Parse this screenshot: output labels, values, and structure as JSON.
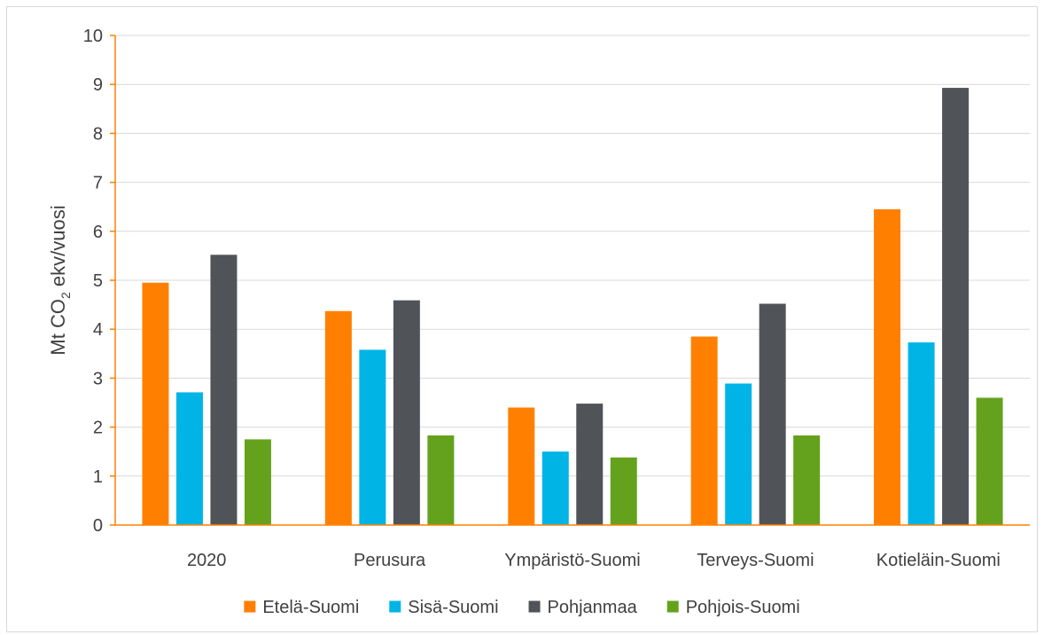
{
  "chart_data": {
    "type": "bar",
    "title": "",
    "ylabel": {
      "pre": "Mt CO",
      "sub": "2",
      "post": " ekv/vuosi"
    },
    "xlabel": "",
    "ylim": [
      0,
      10
    ],
    "yticks": [
      0,
      1,
      2,
      3,
      4,
      5,
      6,
      7,
      8,
      9,
      10
    ],
    "grid": true,
    "legend_position": "bottom",
    "categories": [
      "2020",
      "Perusura",
      "Ympäristö-Suomi",
      "Terveys-Suomi",
      "Kotieläin-Suomi"
    ],
    "series": [
      {
        "name": "Etelä-Suomi",
        "color": "#ff8000",
        "values": [
          4.95,
          4.37,
          2.4,
          3.85,
          6.45
        ]
      },
      {
        "name": "Sisä-Suomi",
        "color": "#00b4e6",
        "values": [
          2.71,
          3.58,
          1.5,
          2.89,
          3.73
        ]
      },
      {
        "name": "Pohjanmaa",
        "color": "#505459",
        "values": [
          5.52,
          4.59,
          2.48,
          4.52,
          8.93
        ]
      },
      {
        "name": "Pohjois-Suomi",
        "color": "#64a21e",
        "values": [
          1.75,
          1.83,
          1.38,
          1.83,
          2.6
        ]
      }
    ],
    "colors": {
      "axis": "#ff8000",
      "grid": "#d9d9d9",
      "text": "#404040"
    }
  }
}
